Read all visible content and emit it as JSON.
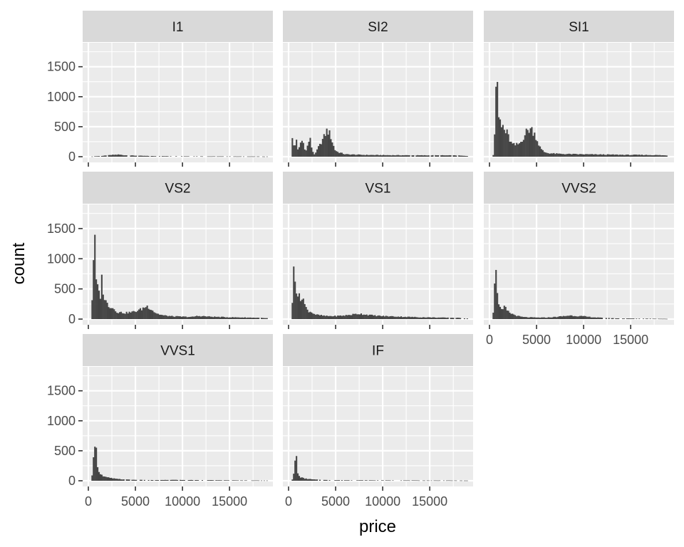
{
  "chart_data": {
    "type": "bar",
    "chart_kind": "faceted histogram",
    "xlabel": "price",
    "ylabel": "count",
    "xlim": [
      0,
      19000
    ],
    "ylim": [
      0,
      1900
    ],
    "x_ticks": [
      0,
      5000,
      10000,
      15000
    ],
    "x_tick_labels": [
      "0",
      "5000",
      "10000",
      "15000"
    ],
    "y_ticks": [
      0,
      500,
      1000,
      1500
    ],
    "y_tick_labels": [
      "0",
      "500",
      "1000",
      "1500"
    ],
    "grid": true,
    "colors": {
      "panel_bg": "#ebebeb",
      "strip_bg": "#d9d9d9",
      "bar": "#454545",
      "grid": "#ffffff"
    },
    "bin_start": 326,
    "bin_width": 146.3,
    "facets": [
      {
        "label": "I1",
        "anchors": [
          [
            326,
            2
          ],
          [
            700,
            8
          ],
          [
            1200,
            10
          ],
          [
            2000,
            20
          ],
          [
            2600,
            30
          ],
          [
            3200,
            35
          ],
          [
            3800,
            25
          ],
          [
            4500,
            20
          ],
          [
            5500,
            15
          ],
          [
            7000,
            10
          ],
          [
            9000,
            8
          ],
          [
            12000,
            6
          ],
          [
            15000,
            5
          ],
          [
            18000,
            4
          ],
          [
            18800,
            3
          ]
        ]
      },
      {
        "label": "SI2",
        "anchors": [
          [
            326,
            5
          ],
          [
            450,
            480
          ],
          [
            520,
            200
          ],
          [
            650,
            120
          ],
          [
            800,
            380
          ],
          [
            950,
            100
          ],
          [
            1150,
            150
          ],
          [
            1300,
            250
          ],
          [
            1500,
            270
          ],
          [
            1700,
            150
          ],
          [
            1900,
            90
          ],
          [
            2100,
            250
          ],
          [
            2300,
            280
          ],
          [
            2500,
            120
          ],
          [
            2700,
            40
          ],
          [
            2900,
            60
          ],
          [
            3100,
            140
          ],
          [
            3300,
            180
          ],
          [
            3500,
            260
          ],
          [
            3700,
            300
          ],
          [
            3900,
            380
          ],
          [
            4100,
            440
          ],
          [
            4300,
            400
          ],
          [
            4500,
            330
          ],
          [
            4700,
            220
          ],
          [
            4900,
            120
          ],
          [
            5200,
            80
          ],
          [
            5600,
            60
          ],
          [
            6000,
            40
          ],
          [
            7000,
            35
          ],
          [
            8000,
            30
          ],
          [
            9000,
            28
          ],
          [
            10000,
            26
          ],
          [
            12000,
            24
          ],
          [
            14000,
            22
          ],
          [
            16000,
            22
          ],
          [
            18000,
            20
          ],
          [
            18800,
            12
          ]
        ]
      },
      {
        "label": "SI1",
        "anchors": [
          [
            326,
            20
          ],
          [
            500,
            50
          ],
          [
            600,
            800
          ],
          [
            700,
            1280
          ],
          [
            780,
            1200
          ],
          [
            850,
            1050
          ],
          [
            950,
            700
          ],
          [
            1050,
            550
          ],
          [
            1150,
            620
          ],
          [
            1250,
            450
          ],
          [
            1350,
            560
          ],
          [
            1500,
            470
          ],
          [
            1650,
            400
          ],
          [
            1800,
            420
          ],
          [
            1950,
            360
          ],
          [
            2100,
            300
          ],
          [
            2300,
            230
          ],
          [
            2500,
            200
          ],
          [
            2700,
            190
          ],
          [
            2900,
            200
          ],
          [
            3100,
            210
          ],
          [
            3300,
            240
          ],
          [
            3500,
            300
          ],
          [
            3700,
            350
          ],
          [
            3900,
            410
          ],
          [
            4100,
            440
          ],
          [
            4300,
            470
          ],
          [
            4500,
            450
          ],
          [
            4700,
            410
          ],
          [
            4900,
            350
          ],
          [
            5100,
            260
          ],
          [
            5300,
            180
          ],
          [
            5500,
            120
          ],
          [
            5800,
            80
          ],
          [
            6200,
            60
          ],
          [
            7000,
            50
          ],
          [
            8000,
            45
          ],
          [
            9000,
            42
          ],
          [
            10000,
            40
          ],
          [
            11000,
            38
          ],
          [
            12000,
            36
          ],
          [
            13000,
            34
          ],
          [
            14000,
            32
          ],
          [
            15000,
            30
          ],
          [
            16000,
            30
          ],
          [
            17000,
            28
          ],
          [
            18000,
            26
          ],
          [
            18800,
            20
          ]
        ]
      },
      {
        "label": "VS2",
        "anchors": [
          [
            326,
            50
          ],
          [
            420,
            400
          ],
          [
            480,
            1300
          ],
          [
            560,
            1000
          ],
          [
            640,
            1440
          ],
          [
            720,
            1100
          ],
          [
            800,
            700
          ],
          [
            900,
            520
          ],
          [
            1000,
            500
          ],
          [
            1100,
            450
          ],
          [
            1200,
            420
          ],
          [
            1300,
            380
          ],
          [
            1400,
            650
          ],
          [
            1500,
            670
          ],
          [
            1600,
            400
          ],
          [
            1800,
            300
          ],
          [
            2000,
            260
          ],
          [
            2200,
            220
          ],
          [
            2400,
            210
          ],
          [
            2600,
            180
          ],
          [
            2800,
            160
          ],
          [
            3000,
            130
          ],
          [
            3200,
            110
          ],
          [
            3400,
            110
          ],
          [
            3600,
            110
          ],
          [
            3800,
            105
          ],
          [
            4000,
            100
          ],
          [
            4200,
            110
          ],
          [
            4400,
            110
          ],
          [
            4600,
            115
          ],
          [
            4800,
            120
          ],
          [
            5000,
            130
          ],
          [
            5200,
            140
          ],
          [
            5400,
            150
          ],
          [
            5600,
            160
          ],
          [
            5800,
            180
          ],
          [
            6000,
            200
          ],
          [
            6200,
            215
          ],
          [
            6400,
            200
          ],
          [
            6600,
            180
          ],
          [
            6800,
            150
          ],
          [
            7000,
            120
          ],
          [
            7200,
            100
          ],
          [
            7500,
            80
          ],
          [
            8000,
            60
          ],
          [
            9000,
            45
          ],
          [
            10000,
            40
          ],
          [
            11000,
            35
          ],
          [
            11500,
            50
          ],
          [
            12000,
            50
          ],
          [
            12500,
            45
          ],
          [
            13000,
            40
          ],
          [
            14000,
            35
          ],
          [
            15000,
            30
          ],
          [
            16000,
            28
          ],
          [
            17000,
            25
          ],
          [
            18000,
            22
          ],
          [
            18800,
            15
          ]
        ]
      },
      {
        "label": "VS1",
        "anchors": [
          [
            326,
            30
          ],
          [
            420,
            300
          ],
          [
            480,
            900
          ],
          [
            560,
            850
          ],
          [
            640,
            920
          ],
          [
            720,
            650
          ],
          [
            800,
            520
          ],
          [
            900,
            450
          ],
          [
            1000,
            400
          ],
          [
            1100,
            380
          ],
          [
            1200,
            330
          ],
          [
            1300,
            300
          ],
          [
            1400,
            380
          ],
          [
            1500,
            430
          ],
          [
            1600,
            300
          ],
          [
            1800,
            200
          ],
          [
            2000,
            150
          ],
          [
            2200,
            130
          ],
          [
            2400,
            120
          ],
          [
            2600,
            100
          ],
          [
            2800,
            80
          ],
          [
            3000,
            70
          ],
          [
            3500,
            60
          ],
          [
            4000,
            50
          ],
          [
            5000,
            50
          ],
          [
            6000,
            60
          ],
          [
            7000,
            80
          ],
          [
            7500,
            90
          ],
          [
            8000,
            80
          ],
          [
            9000,
            60
          ],
          [
            10000,
            50
          ],
          [
            11000,
            45
          ],
          [
            12000,
            40
          ],
          [
            13000,
            35
          ],
          [
            14000,
            30
          ],
          [
            15000,
            28
          ],
          [
            16000,
            25
          ],
          [
            17000,
            22
          ],
          [
            18000,
            20
          ],
          [
            18800,
            12
          ]
        ]
      },
      {
        "label": "VVS2",
        "anchors": [
          [
            326,
            20
          ],
          [
            420,
            150
          ],
          [
            500,
            600
          ],
          [
            580,
            750
          ],
          [
            650,
            780
          ],
          [
            720,
            700
          ],
          [
            800,
            560
          ],
          [
            880,
            400
          ],
          [
            950,
            300
          ],
          [
            1050,
            230
          ],
          [
            1150,
            180
          ],
          [
            1250,
            150
          ],
          [
            1350,
            130
          ],
          [
            1500,
            180
          ],
          [
            1650,
            200
          ],
          [
            1800,
            150
          ],
          [
            2000,
            120
          ],
          [
            2200,
            100
          ],
          [
            2500,
            80
          ],
          [
            3000,
            50
          ],
          [
            3500,
            35
          ],
          [
            4000,
            30
          ],
          [
            5000,
            25
          ],
          [
            6000,
            25
          ],
          [
            7000,
            35
          ],
          [
            8000,
            50
          ],
          [
            8500,
            60
          ],
          [
            9000,
            55
          ],
          [
            10000,
            45
          ],
          [
            11000,
            30
          ],
          [
            12000,
            20
          ],
          [
            13000,
            15
          ],
          [
            14000,
            10
          ],
          [
            15000,
            10
          ],
          [
            16000,
            8
          ],
          [
            17000,
            8
          ],
          [
            18000,
            6
          ],
          [
            18800,
            4
          ]
        ]
      },
      {
        "label": "VVS1",
        "anchors": [
          [
            326,
            10
          ],
          [
            420,
            100
          ],
          [
            500,
            300
          ],
          [
            580,
            600
          ],
          [
            650,
            740
          ],
          [
            720,
            650
          ],
          [
            800,
            580
          ],
          [
            880,
            400
          ],
          [
            950,
            300
          ],
          [
            1050,
            200
          ],
          [
            1150,
            150
          ],
          [
            1300,
            120
          ],
          [
            1500,
            80
          ],
          [
            1800,
            60
          ],
          [
            2200,
            50
          ],
          [
            2600,
            40
          ],
          [
            3000,
            30
          ],
          [
            3500,
            25
          ],
          [
            4000,
            20
          ],
          [
            5000,
            15
          ],
          [
            6000,
            12
          ],
          [
            7000,
            10
          ],
          [
            8000,
            12
          ],
          [
            9000,
            15
          ],
          [
            10000,
            12
          ],
          [
            11000,
            12
          ],
          [
            12000,
            10
          ],
          [
            13000,
            10
          ],
          [
            14000,
            8
          ],
          [
            15000,
            8
          ],
          [
            16000,
            6
          ],
          [
            17000,
            6
          ],
          [
            18000,
            5
          ],
          [
            18800,
            4
          ]
        ]
      },
      {
        "label": "IF",
        "anchors": [
          [
            326,
            5
          ],
          [
            420,
            30
          ],
          [
            500,
            80
          ],
          [
            580,
            120
          ],
          [
            650,
            200
          ],
          [
            720,
            420
          ],
          [
            800,
            440
          ],
          [
            880,
            300
          ],
          [
            950,
            150
          ],
          [
            1050,
            90
          ],
          [
            1150,
            70
          ],
          [
            1300,
            60
          ],
          [
            1500,
            45
          ],
          [
            1800,
            35
          ],
          [
            2200,
            28
          ],
          [
            2600,
            22
          ],
          [
            3000,
            18
          ],
          [
            3500,
            15
          ],
          [
            4000,
            12
          ],
          [
            5000,
            10
          ],
          [
            6000,
            9
          ],
          [
            7000,
            8
          ],
          [
            8000,
            8
          ],
          [
            9000,
            7
          ],
          [
            10000,
            7
          ],
          [
            11000,
            6
          ],
          [
            12000,
            6
          ],
          [
            13000,
            6
          ],
          [
            14000,
            5
          ],
          [
            15000,
            5
          ],
          [
            16000,
            5
          ],
          [
            17000,
            5
          ],
          [
            18000,
            4
          ],
          [
            18800,
            3
          ]
        ]
      }
    ]
  }
}
